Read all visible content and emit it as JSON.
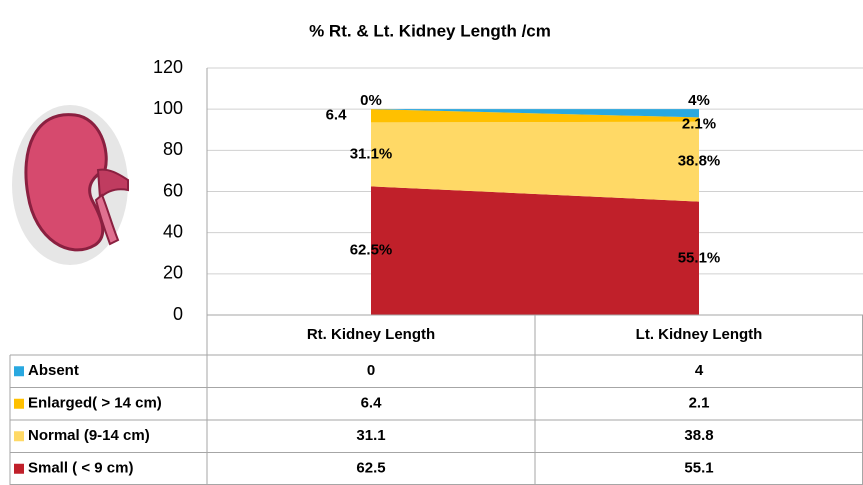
{
  "chart_data": {
    "type": "stacked_area",
    "title": "% Rt. & Lt. Kidney  Length /cm",
    "categories": [
      "Rt. Kidney Length",
      "Lt. Kidney Length"
    ],
    "series": [
      {
        "name": "Absent",
        "color": "#29a8e0",
        "values": [
          0,
          4
        ],
        "value_labels": [
          "0%",
          "4%"
        ]
      },
      {
        "name": "Enlarged( > 14 cm)",
        "color": "#ffc000",
        "values": [
          6.4,
          2.1
        ],
        "value_labels": [
          "6.4",
          "2.1%"
        ]
      },
      {
        "name": "Normal (9-14 cm)",
        "color": "#ffd966",
        "values": [
          31.1,
          38.8
        ],
        "value_labels": [
          "31.1%",
          "38.8%"
        ]
      },
      {
        "name": "Small ( < 9 cm)",
        "color": "#c0202a",
        "values": [
          62.5,
          55.1
        ],
        "value_labels": [
          "62.5%",
          "55.1%"
        ]
      }
    ],
    "ylim": [
      0,
      120
    ],
    "yticks": [
      0,
      20,
      40,
      60,
      80,
      100,
      120
    ],
    "grid": true
  }
}
